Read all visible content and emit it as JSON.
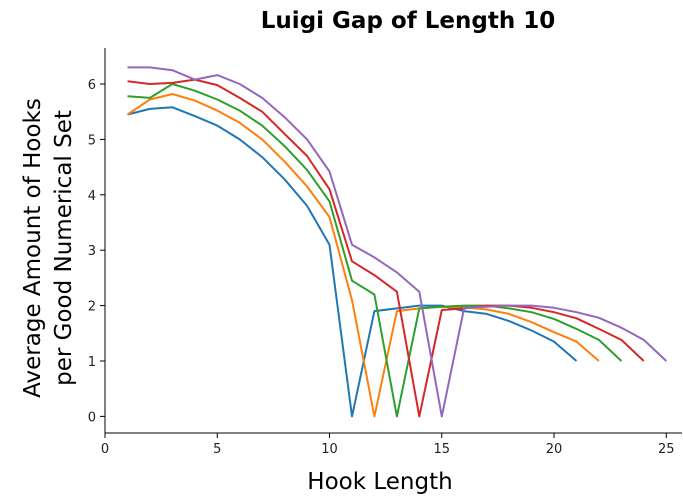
{
  "chart_data": {
    "type": "line",
    "title": "Luigi Gap of Length 10",
    "xlabel": "Hook Length",
    "ylabel_lines": [
      "Average Amount of Hooks",
      "per Good Numerical Set"
    ],
    "xlim": [
      0,
      25.7
    ],
    "ylim": [
      -0.3,
      6.65
    ],
    "xticks": [
      0,
      5,
      10,
      15,
      20,
      25
    ],
    "yticks": [
      0,
      1,
      2,
      3,
      4,
      5,
      6
    ],
    "grid": false,
    "series": [
      {
        "color": "#1f77b4",
        "x": [
          1,
          2,
          3,
          4,
          5,
          6,
          7,
          8,
          9,
          10,
          11,
          12,
          13,
          14,
          15,
          16,
          17,
          18,
          19,
          20,
          21
        ],
        "y": [
          5.45,
          5.55,
          5.58,
          5.42,
          5.25,
          5.0,
          4.68,
          4.28,
          3.8,
          3.1,
          0.0,
          1.9,
          1.95,
          2.0,
          2.0,
          1.9,
          1.85,
          1.72,
          1.55,
          1.35,
          1.0
        ]
      },
      {
        "color": "#ff7f0e",
        "x": [
          1,
          2,
          3,
          4,
          5,
          6,
          7,
          8,
          9,
          10,
          11,
          12,
          13,
          14,
          15,
          16,
          17,
          18,
          19,
          20,
          21,
          22
        ],
        "y": [
          5.45,
          5.72,
          5.82,
          5.7,
          5.52,
          5.3,
          5.0,
          4.6,
          4.15,
          3.6,
          2.1,
          0.0,
          1.9,
          1.95,
          1.98,
          1.97,
          1.93,
          1.85,
          1.7,
          1.52,
          1.35,
          1.0
        ]
      },
      {
        "color": "#2ca02c",
        "x": [
          1,
          2,
          3,
          4,
          5,
          6,
          7,
          8,
          9,
          10,
          11,
          12,
          13,
          14,
          15,
          16,
          17,
          18,
          19,
          20,
          21,
          22,
          23
        ],
        "y": [
          5.78,
          5.75,
          6.0,
          5.88,
          5.72,
          5.52,
          5.25,
          4.88,
          4.45,
          3.88,
          2.45,
          2.2,
          0.0,
          1.95,
          1.98,
          2.0,
          2.0,
          1.95,
          1.88,
          1.76,
          1.58,
          1.38,
          1.0
        ]
      },
      {
        "color": "#d62728",
        "x": [
          1,
          2,
          3,
          4,
          5,
          6,
          7,
          8,
          9,
          10,
          11,
          12,
          13,
          14,
          15,
          16,
          17,
          18,
          19,
          20,
          21,
          22,
          23,
          24
        ],
        "y": [
          6.05,
          6.0,
          6.02,
          6.08,
          5.98,
          5.75,
          5.5,
          5.1,
          4.7,
          4.1,
          2.8,
          2.55,
          2.25,
          0.0,
          1.92,
          1.95,
          2.0,
          2.0,
          1.96,
          1.88,
          1.77,
          1.58,
          1.38,
          1.0
        ]
      },
      {
        "color": "#9467bd",
        "x": [
          1,
          2,
          3,
          4,
          5,
          6,
          7,
          8,
          9,
          10,
          11,
          12,
          13,
          14,
          15,
          16,
          17,
          18,
          19,
          20,
          21,
          22,
          23,
          24,
          25
        ],
        "y": [
          6.3,
          6.3,
          6.25,
          6.08,
          6.16,
          6.0,
          5.75,
          5.4,
          5.0,
          4.42,
          3.1,
          2.87,
          2.6,
          2.25,
          0.0,
          1.96,
          1.98,
          2.0,
          2.0,
          1.96,
          1.88,
          1.78,
          1.6,
          1.38,
          1.0
        ]
      }
    ]
  }
}
